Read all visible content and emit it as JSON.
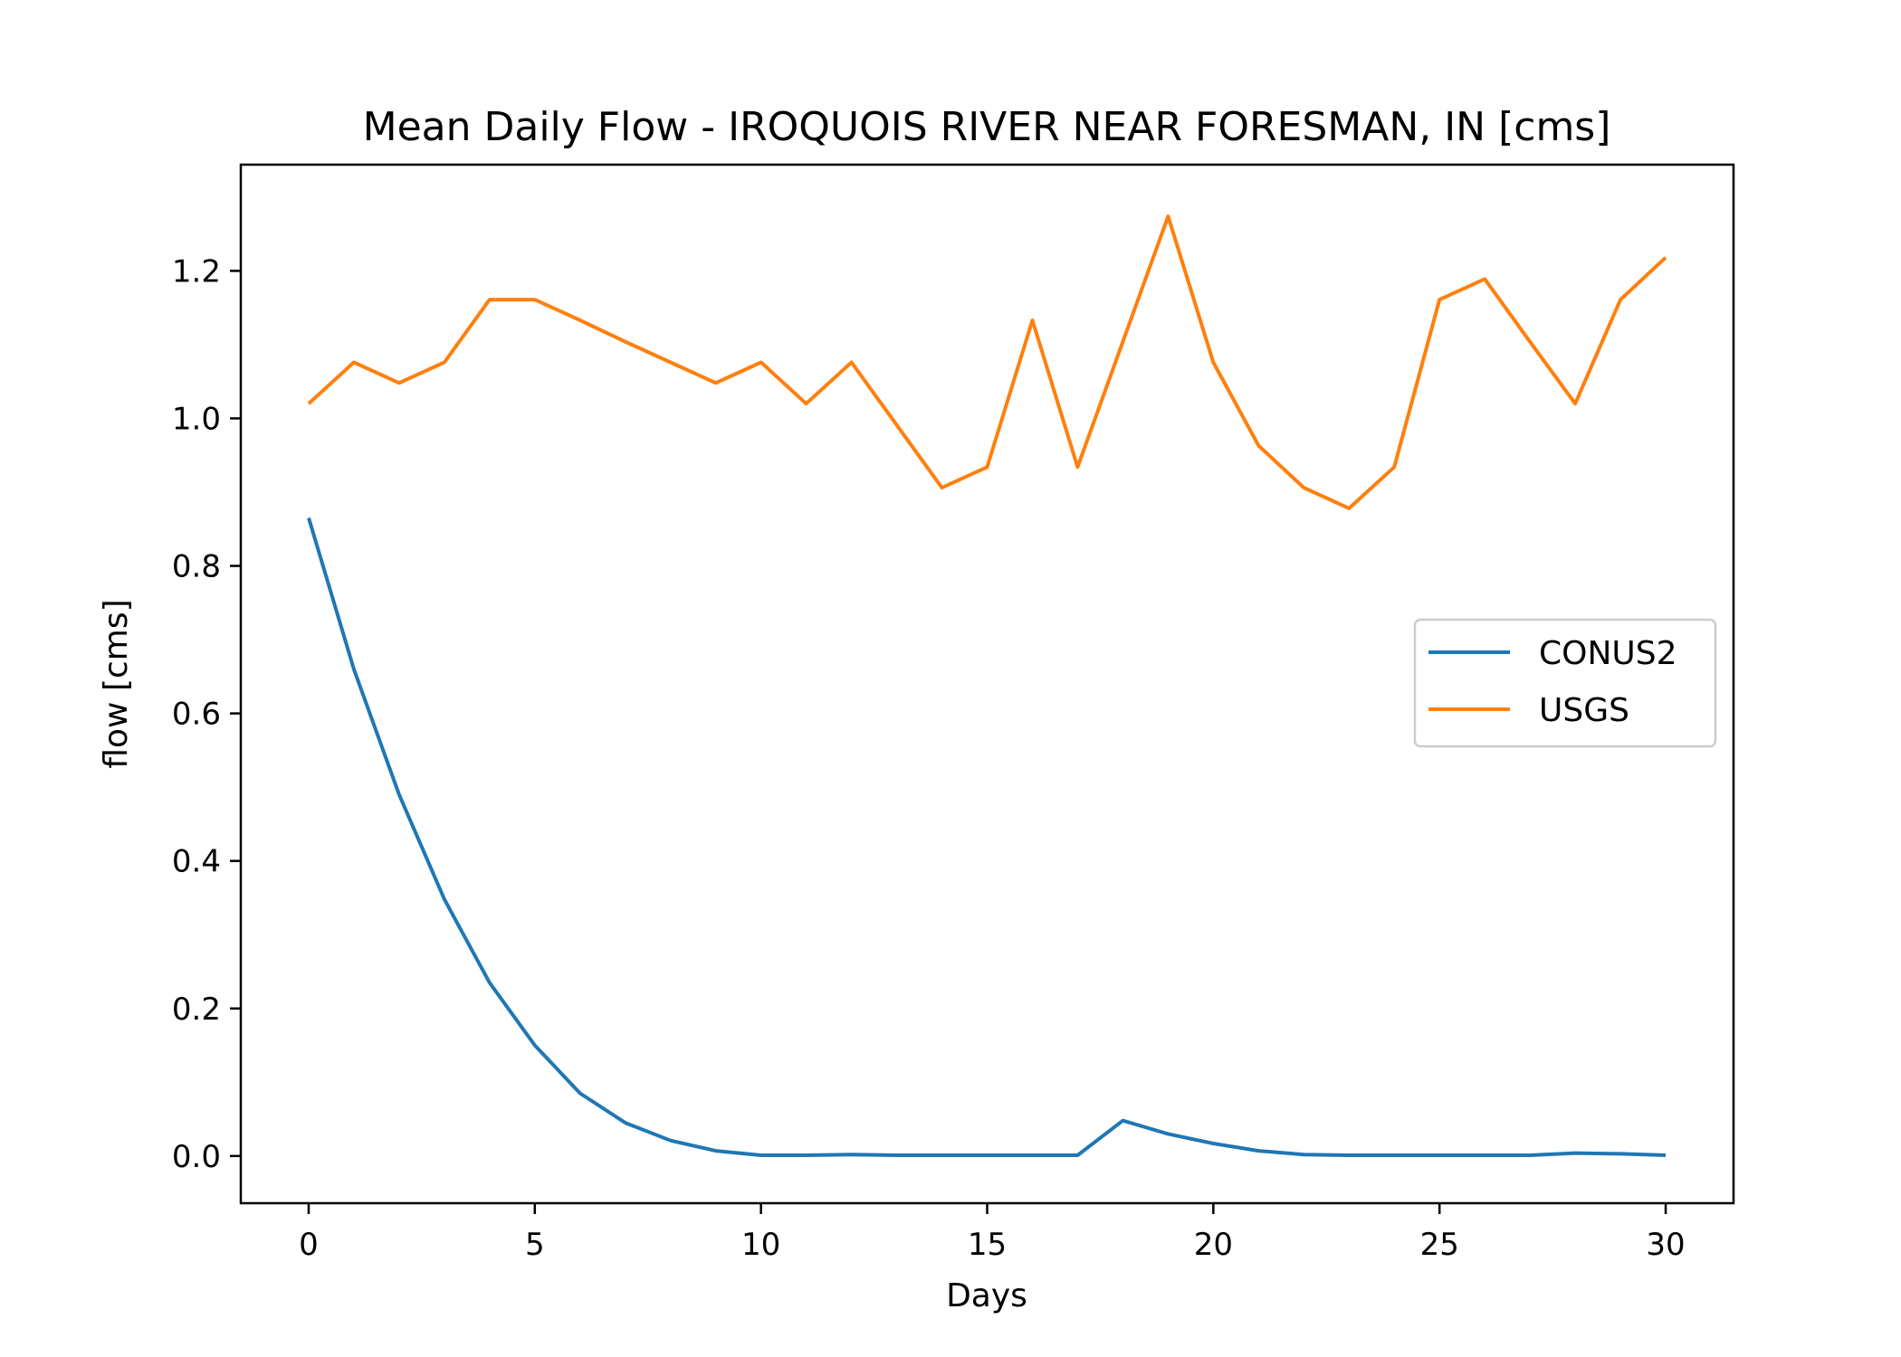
{
  "chart_data": {
    "type": "line",
    "title": "Mean Daily Flow - IROQUOIS RIVER NEAR FORESMAN, IN [cms]",
    "xlabel": "Days",
    "ylabel": "flow [cms]",
    "xlim": [
      -1.5,
      31.5
    ],
    "ylim": [
      -0.064,
      1.344
    ],
    "xticks": [
      {
        "value": 0,
        "label": "0"
      },
      {
        "value": 5,
        "label": "5"
      },
      {
        "value": 10,
        "label": "10"
      },
      {
        "value": 15,
        "label": "15"
      },
      {
        "value": 20,
        "label": "20"
      },
      {
        "value": 25,
        "label": "25"
      },
      {
        "value": 30,
        "label": "30"
      }
    ],
    "yticks": [
      {
        "value": 0.0,
        "label": "0.0"
      },
      {
        "value": 0.2,
        "label": "0.2"
      },
      {
        "value": 0.4,
        "label": "0.4"
      },
      {
        "value": 0.6,
        "label": "0.6"
      },
      {
        "value": 0.8,
        "label": "0.8"
      },
      {
        "value": 1.0,
        "label": "1.0"
      },
      {
        "value": 1.2,
        "label": "1.2"
      }
    ],
    "grid": false,
    "legend_position": "center-right",
    "x": [
      0,
      1,
      2,
      3,
      4,
      5,
      6,
      7,
      8,
      9,
      10,
      11,
      12,
      13,
      14,
      15,
      16,
      17,
      18,
      19,
      20,
      21,
      22,
      23,
      24,
      25,
      26,
      27,
      28,
      29,
      30
    ],
    "series": [
      {
        "name": "CONUS2",
        "color": "#1f77b4",
        "values": [
          0.865,
          0.66,
          0.49,
          0.348,
          0.235,
          0.15,
          0.085,
          0.045,
          0.021,
          0.007,
          0.001,
          0.001,
          0.002,
          0.001,
          0.001,
          0.001,
          0.001,
          0.001,
          0.048,
          0.03,
          0.017,
          0.007,
          0.002,
          0.001,
          0.001,
          0.001,
          0.001,
          0.001,
          0.004,
          0.003,
          0.001
        ]
      },
      {
        "name": "USGS",
        "color": "#ff7f0e",
        "values": [
          1.02,
          1.076,
          1.048,
          1.076,
          1.161,
          1.161,
          1.133,
          1.104,
          1.076,
          1.048,
          1.076,
          1.02,
          1.076,
          0.991,
          0.906,
          0.934,
          1.133,
          0.934,
          1.104,
          1.274,
          1.076,
          0.963,
          0.906,
          0.878,
          0.934,
          1.161,
          1.189,
          1.104,
          1.02,
          1.161,
          1.218
        ]
      }
    ]
  }
}
